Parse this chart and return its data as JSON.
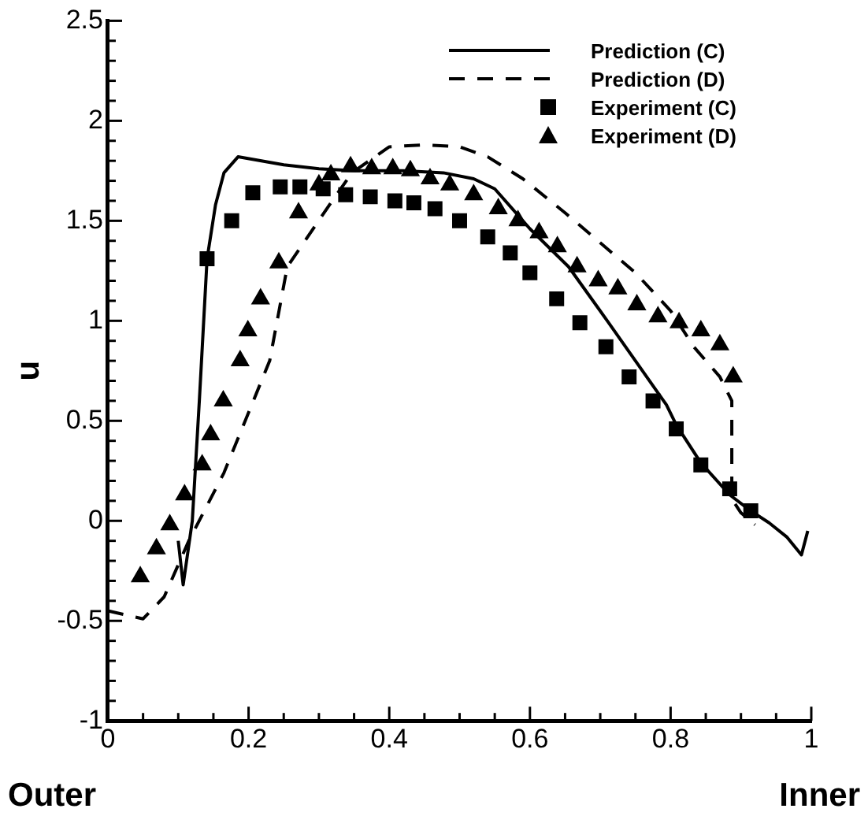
{
  "chart_data": {
    "type": "line",
    "ylabel": "u",
    "annotations": [
      "Outer",
      "Inner"
    ],
    "xlim": [
      0,
      1
    ],
    "xticks": [
      0,
      {
        "value": 0.05,
        "label": null
      },
      {
        "value": 0.1,
        "label": null
      },
      {
        "value": 0.15,
        "label": null
      },
      {
        "value": 0.2,
        "label": "0.2"
      },
      {
        "value": 0.25,
        "label": null
      },
      {
        "value": 0.3,
        "label": null
      },
      {
        "value": 0.35,
        "label": null
      },
      {
        "value": 0.4,
        "label": "0.4"
      },
      {
        "value": 0.45,
        "label": null
      },
      {
        "value": 0.5,
        "label": null
      },
      {
        "value": 0.55,
        "label": null
      },
      {
        "value": 0.6,
        "label": "0.6"
      },
      {
        "value": 0.65,
        "label": null
      },
      {
        "value": 0.7,
        "label": null
      },
      {
        "value": 0.75,
        "label": null
      },
      {
        "value": 0.8,
        "label": "0.8"
      },
      {
        "value": 0.85,
        "label": null
      },
      {
        "value": 0.9,
        "label": null
      },
      {
        "value": 0.95,
        "label": null
      },
      1
    ],
    "ylim": [
      -1,
      2.5
    ],
    "yticks": [
      -1,
      {
        "value": -0.9,
        "label": null
      },
      {
        "value": -0.8,
        "label": null
      },
      {
        "value": -0.7,
        "label": null
      },
      {
        "value": -0.6,
        "label": null
      },
      -0.5,
      {
        "value": -0.4,
        "label": null
      },
      {
        "value": -0.3,
        "label": null
      },
      {
        "value": -0.2,
        "label": null
      },
      {
        "value": -0.1,
        "label": null
      },
      0,
      {
        "value": 0.1,
        "label": null
      },
      {
        "value": 0.2,
        "label": null
      },
      {
        "value": 0.3,
        "label": null
      },
      {
        "value": 0.4,
        "label": null
      },
      0.5,
      {
        "value": 0.6,
        "label": null
      },
      {
        "value": 0.7,
        "label": null
      },
      {
        "value": 0.8,
        "label": null
      },
      {
        "value": 0.9,
        "label": null
      },
      1,
      {
        "value": 1.1,
        "label": null
      },
      {
        "value": 1.2,
        "label": null
      },
      {
        "value": 1.3,
        "label": null
      },
      {
        "value": 1.4,
        "label": null
      },
      1.5,
      {
        "value": 1.6,
        "label": null
      },
      {
        "value": 1.7,
        "label": null
      },
      {
        "value": 1.8,
        "label": null
      },
      {
        "value": 1.9,
        "label": null
      },
      2,
      {
        "value": 2.1,
        "label": null
      },
      {
        "value": 2.2,
        "label": null
      },
      {
        "value": 2.3,
        "label": null
      },
      {
        "value": 2.4,
        "label": null
      },
      2.5
    ],
    "legend": "top right",
    "series": [
      {
        "name": "Prediction (C)",
        "type": "line",
        "color": "#000000",
        "marker": "none",
        "line_style": "solid",
        "x": [
          0.1,
          0.107,
          0.12,
          0.13,
          0.141,
          0.153,
          0.165,
          0.185,
          0.25,
          0.3,
          0.35,
          0.42,
          0.477,
          0.52,
          0.55,
          0.6,
          0.655,
          0.71,
          0.75,
          0.794,
          0.808,
          0.843,
          0.884,
          0.914,
          0.94,
          0.965,
          0.986,
          0.995
        ],
        "values": [
          -0.1,
          -0.32,
          0.0,
          0.6,
          1.31,
          1.58,
          1.74,
          1.82,
          1.78,
          1.76,
          1.75,
          1.75,
          1.74,
          1.71,
          1.66,
          1.46,
          1.27,
          1.0,
          0.8,
          0.58,
          0.48,
          0.29,
          0.13,
          0.05,
          -0.01,
          -0.08,
          -0.17,
          -0.05
        ]
      },
      {
        "name": "Prediction (D)",
        "type": "line",
        "color": "#000000",
        "marker": "none",
        "line_style": "dashed",
        "x": [
          0,
          0.05,
          0.08,
          0.115,
          0.165,
          0.23,
          0.255,
          0.315,
          0.347,
          0.4,
          0.45,
          0.5,
          0.54,
          0.59,
          0.65,
          0.7,
          0.75,
          0.8,
          0.833,
          0.87,
          0.887,
          0.887,
          0.9,
          0.92
        ],
        "values": [
          -0.45,
          -0.49,
          -0.38,
          -0.1,
          0.24,
          0.8,
          1.27,
          1.58,
          1.74,
          1.87,
          1.88,
          1.87,
          1.82,
          1.71,
          1.54,
          1.39,
          1.24,
          1.05,
          0.87,
          0.72,
          0.6,
          0.11,
          0.04,
          -0.02
        ]
      },
      {
        "name": "Experiment (C)",
        "type": "scatter",
        "color": "#000000",
        "marker": "square",
        "x": [
          0.141,
          0.176,
          0.206,
          0.245,
          0.273,
          0.306,
          0.338,
          0.373,
          0.408,
          0.435,
          0.465,
          0.5,
          0.54,
          0.572,
          0.6,
          0.638,
          0.671,
          0.708,
          0.741,
          0.775,
          0.808,
          0.843,
          0.884,
          0.914
        ],
        "values": [
          1.31,
          1.5,
          1.64,
          1.67,
          1.67,
          1.66,
          1.63,
          1.62,
          1.6,
          1.59,
          1.56,
          1.5,
          1.42,
          1.34,
          1.24,
          1.11,
          0.99,
          0.87,
          0.72,
          0.6,
          0.46,
          0.28,
          0.16,
          0.05
        ]
      },
      {
        "name": "Experiment (D)",
        "type": "scatter",
        "color": "#000000",
        "marker": "triangle",
        "x": [
          0.046,
          0.069,
          0.088,
          0.109,
          0.134,
          0.146,
          0.164,
          0.188,
          0.199,
          0.217,
          0.243,
          0.271,
          0.3,
          0.317,
          0.345,
          0.375,
          0.405,
          0.43,
          0.458,
          0.486,
          0.52,
          0.555,
          0.583,
          0.613,
          0.639,
          0.667,
          0.697,
          0.725,
          0.752,
          0.782,
          0.812,
          0.843,
          0.87,
          0.889
        ],
        "values": [
          -0.28,
          -0.14,
          -0.02,
          0.13,
          0.28,
          0.43,
          0.6,
          0.8,
          0.95,
          1.11,
          1.29,
          1.54,
          1.68,
          1.73,
          1.77,
          1.76,
          1.76,
          1.75,
          1.71,
          1.68,
          1.63,
          1.56,
          1.5,
          1.44,
          1.37,
          1.27,
          1.2,
          1.16,
          1.08,
          1.02,
          0.99,
          0.95,
          0.88,
          0.72
        ]
      }
    ]
  }
}
